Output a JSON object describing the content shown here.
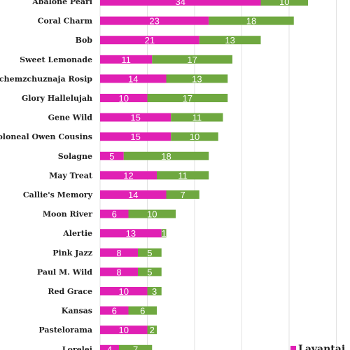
{
  "chart_data": {
    "type": "bar",
    "orientation": "horizontal",
    "stacked": true,
    "grid": true,
    "legend_position": "bottom-right",
    "xlim": [
      0,
      60
    ],
    "categories": [
      "Abalone Pearl",
      "Coral Charm",
      "Bob",
      "Sweet Lemonade",
      "Zachemzchuznaja Rosip",
      "Glory Hallelujah",
      "Gene Wild",
      "Coloneal Owen Cousins",
      "Solagne",
      "May Treat",
      "Callie's Memory",
      "Moon River",
      "Alertie",
      "Pink Jazz",
      "Paul M. Wild",
      "Red Grace",
      "Kansas",
      "Pastelorama",
      "Lorelei"
    ],
    "series": [
      {
        "name": "Lavantai",
        "color": "#e020b4",
        "values": [
          34,
          23,
          21,
          11,
          14,
          10,
          15,
          15,
          5,
          12,
          14,
          6,
          13,
          8,
          8,
          10,
          6,
          10,
          4
        ]
      },
      {
        "color": "#6fa840",
        "values": [
          10,
          18,
          13,
          17,
          13,
          17,
          11,
          10,
          18,
          11,
          7,
          10,
          1,
          5,
          5,
          3,
          6,
          2,
          7
        ]
      }
    ]
  }
}
